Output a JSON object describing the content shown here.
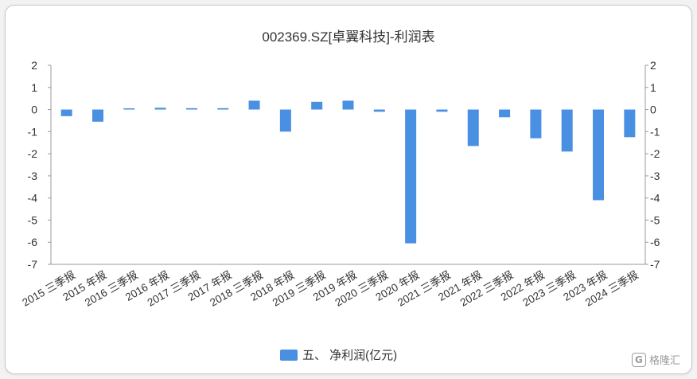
{
  "chart_data": {
    "type": "bar",
    "title": "002369.SZ[卓翼科技]-利润表",
    "categories": [
      "2015 三季报",
      "2015 年报",
      "2016 三季报",
      "2016 年报",
      "2017 三季报",
      "2017 年报",
      "2018 三季报",
      "2018 年报",
      "2019 三季报",
      "2019 年报",
      "2020 三季报",
      "2020 年报",
      "2021 三季报",
      "2021 年报",
      "2022 三季报",
      "2022 年报",
      "2023 三季报",
      "2023 年报",
      "2024 三季报"
    ],
    "series": [
      {
        "name": "五、 净利润(亿元)",
        "color": "#4a90e2",
        "values": [
          -0.3,
          -0.55,
          0.03,
          0.08,
          0.06,
          0.06,
          0.4,
          -1.0,
          0.35,
          0.4,
          -0.1,
          -6.05,
          -0.1,
          -1.65,
          -0.35,
          -1.3,
          -1.9,
          -4.1,
          -1.25
        ]
      }
    ],
    "ylim": [
      -7,
      2
    ],
    "yticks": [
      2,
      1,
      0,
      -1,
      -2,
      -3,
      -4,
      -5,
      -6,
      -7
    ],
    "xlabel": "",
    "ylabel": "",
    "grid": false,
    "legend": "bottom-center"
  },
  "watermark": {
    "logo_text": "G",
    "text": "格隆汇"
  }
}
